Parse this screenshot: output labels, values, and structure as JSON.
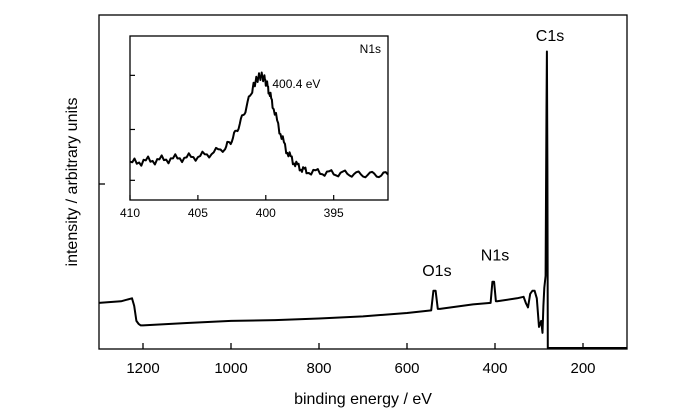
{
  "chart_data": [
    {
      "type": "line",
      "title": "",
      "xlabel": "binding energy / eV",
      "ylabel": "intensity / arbitrary units",
      "xlim": [
        1300,
        100
      ],
      "ylim": [
        0,
        1
      ],
      "x_reversed": true,
      "xticks": [
        1200,
        1000,
        800,
        600,
        400,
        200
      ],
      "grid": false,
      "legend": "none",
      "series": [
        {
          "x": [
            1300,
            1250,
            1225,
            1220,
            1215,
            1210,
            1205,
            1200,
            1100,
            1000,
            900,
            800,
            700,
            600,
            545,
            540,
            535,
            530,
            525,
            500,
            450,
            410,
            406,
            402,
            398,
            395,
            350,
            335,
            330,
            325,
            320,
            315,
            310,
            305,
            300,
            295,
            292,
            290,
            288,
            285,
            284,
            283,
            282,
            281,
            280,
            270,
            200,
            100
          ],
          "y": [
            0.15,
            0.155,
            0.165,
            0.14,
            0.09,
            0.08,
            0.075,
            0.075,
            0.08,
            0.085,
            0.09,
            0.1,
            0.11,
            0.12,
            0.125,
            0.19,
            0.19,
            0.13,
            0.13,
            0.135,
            0.145,
            0.15,
            0.22,
            0.22,
            0.155,
            0.155,
            0.165,
            0.17,
            0.15,
            0.135,
            0.18,
            0.19,
            0.19,
            0.165,
            0.07,
            0.09,
            0.05,
            0.14,
            0.2,
            0.24,
            0.5,
            0.8,
            0.985,
            0.6,
            0.0,
            0.0,
            0.0,
            0.0
          ]
        }
      ],
      "annotations": [
        {
          "text": "C1s",
          "x": 275,
          "y": 1.02
        },
        {
          "text": "O1s",
          "x": 532,
          "y": 0.24
        },
        {
          "text": "N1s",
          "x": 400,
          "y": 0.29
        }
      ]
    },
    {
      "type": "line",
      "title": "N1s",
      "xlabel": "",
      "ylabel": "",
      "xlim": [
        410,
        391
      ],
      "x_reversed": true,
      "xticks": [
        410,
        405,
        400,
        395
      ],
      "grid": false,
      "legend": "none",
      "series": [
        {
          "x": [
            410,
            409,
            408,
            407,
            406,
            405,
            404,
            403,
            402.5,
            402,
            401.5,
            401,
            400.8,
            400.6,
            400.4,
            400.2,
            400,
            399.8,
            399.5,
            399,
            398.5,
            398,
            397.5,
            397,
            396,
            395,
            394,
            393,
            392,
            391
          ],
          "y": [
            0.22,
            0.24,
            0.25,
            0.26,
            0.27,
            0.28,
            0.31,
            0.36,
            0.43,
            0.55,
            0.7,
            0.88,
            0.94,
            0.98,
            1.0,
            0.99,
            0.95,
            0.88,
            0.75,
            0.52,
            0.34,
            0.24,
            0.18,
            0.15,
            0.14,
            0.13,
            0.13,
            0.12,
            0.12,
            0.12
          ]
        }
      ],
      "annotations": [
        {
          "text": "400.4 eV",
          "x": 400.4,
          "y": 1.0
        }
      ]
    }
  ]
}
